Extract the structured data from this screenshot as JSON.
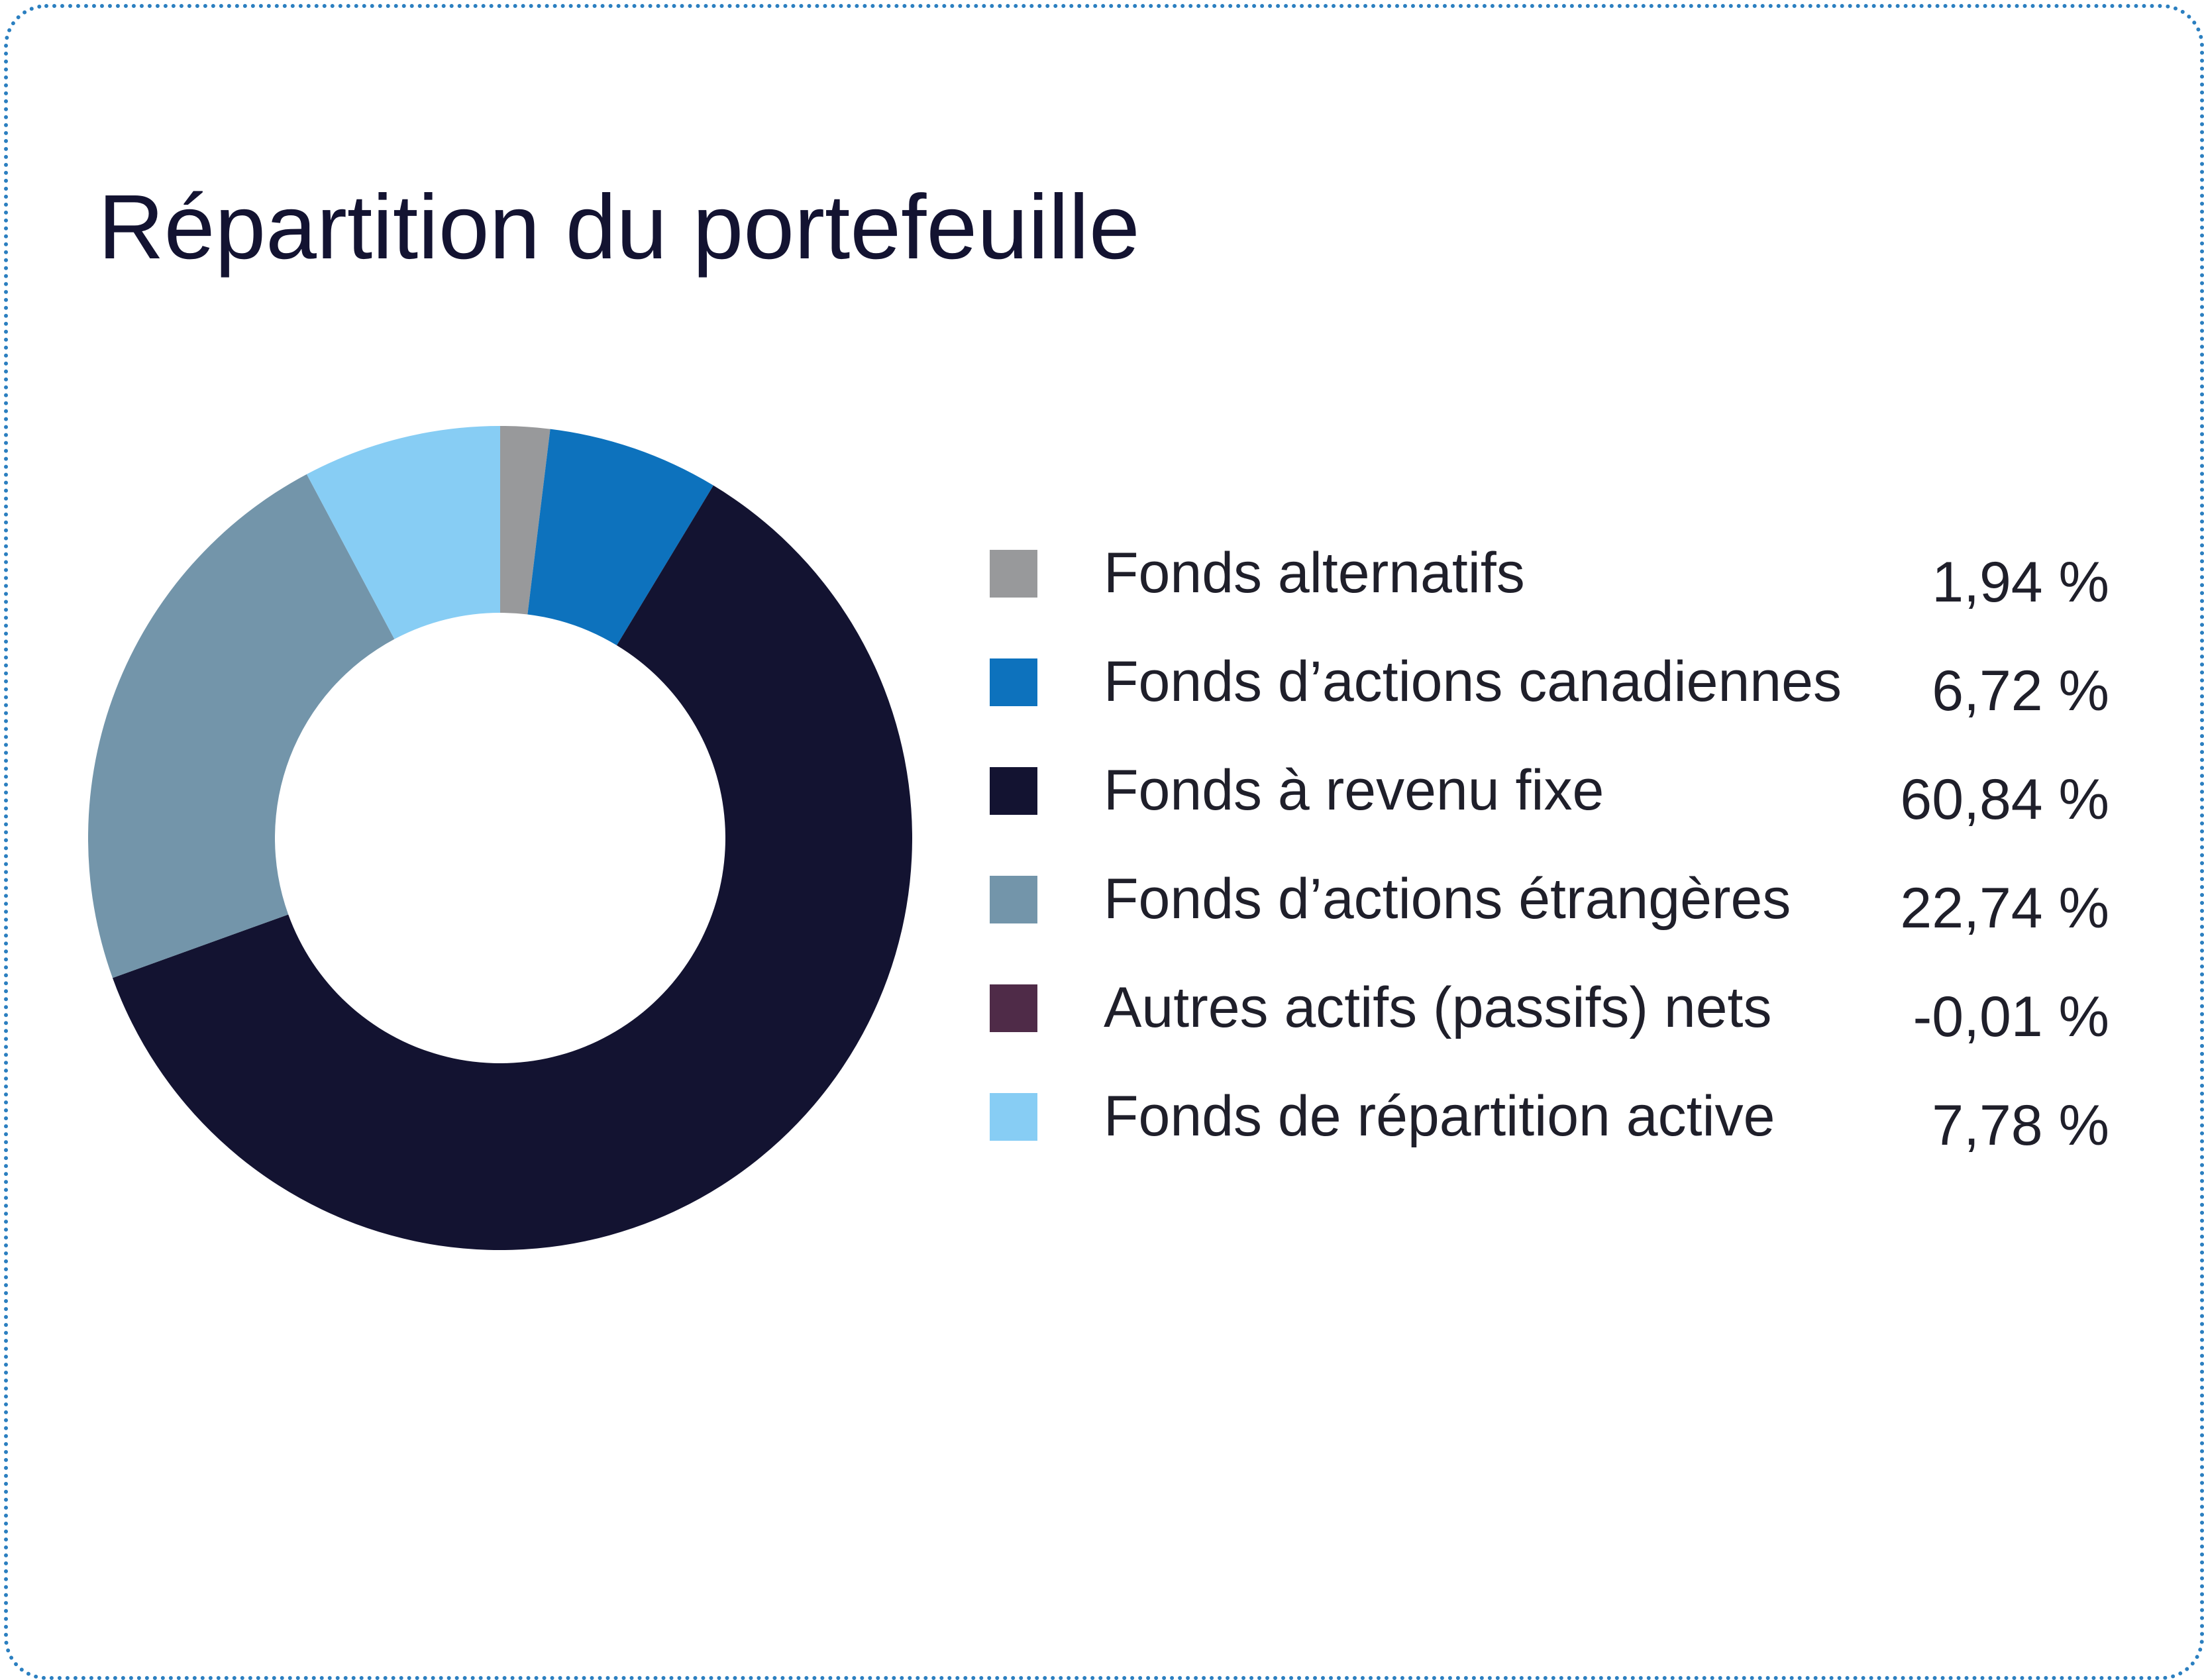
{
  "chart_data": {
    "type": "pie",
    "title": "Répartition du portefeuille",
    "donut": true,
    "legend_position": "right",
    "slices": [
      {
        "label": "Fonds alternatifs",
        "value": 1.94,
        "value_label": "1,94 %",
        "color": "#98999b"
      },
      {
        "label": "Fonds d’actions canadiennes",
        "value": 6.72,
        "value_label": "6,72 %",
        "color": "#0d72bd"
      },
      {
        "label": "Fonds à revenu fixe",
        "value": 60.84,
        "value_label": "60,84 %",
        "color": "#131331"
      },
      {
        "label": "Fonds d’actions étrangères",
        "value": 22.74,
        "value_label": "22,74 %",
        "color": "#7395aa"
      },
      {
        "label": "Autres actifs (passifs) nets",
        "value": -0.01,
        "value_label": "-0,01 %",
        "color": "#4f2b48"
      },
      {
        "label": "Fonds de répartition active",
        "value": 7.78,
        "value_label": "7,78 %",
        "color": "#87cdf4"
      }
    ]
  },
  "colors": {
    "border": "#2b7fc0",
    "title_text": "#131331",
    "legend_text": "#1f1f2a"
  }
}
